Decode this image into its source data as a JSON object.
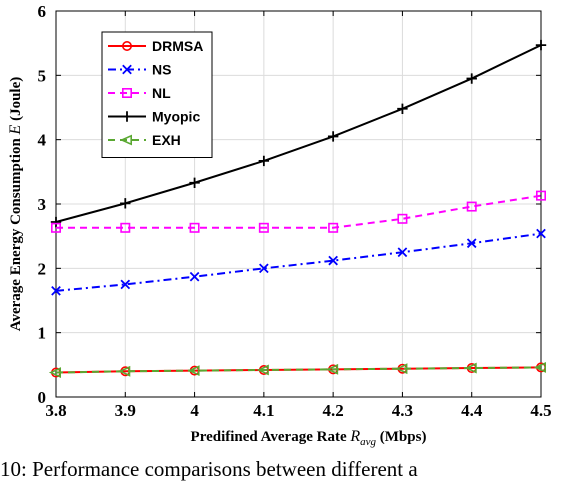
{
  "chart_data": {
    "type": "line",
    "xlabel_main": "Predifined Average Rate ",
    "xlabel_sym": "R",
    "xlabel_sub": "avg",
    "xlabel_unit": " (Mbps)",
    "ylabel_main": "Average Energy Consumption ",
    "ylabel_sym": "E",
    "ylabel_unit": " (Joule)",
    "x": [
      3.8,
      3.9,
      4.0,
      4.1,
      4.2,
      4.3,
      4.4,
      4.5
    ],
    "x_ticks": [
      "3.8",
      "3.9",
      "4",
      "4.1",
      "4.2",
      "4.3",
      "4.4",
      "4.5"
    ],
    "y_ticks": [
      "0",
      "1",
      "2",
      "3",
      "4",
      "5",
      "6"
    ],
    "xlim": [
      3.8,
      4.5
    ],
    "ylim": [
      0,
      6
    ],
    "grid": true,
    "legend_position": "top-left",
    "series": [
      {
        "name": "DRMSA",
        "color": "#ff0000",
        "marker": "circle",
        "dash": "solid",
        "values": [
          0.38,
          0.4,
          0.41,
          0.42,
          0.43,
          0.44,
          0.45,
          0.46
        ]
      },
      {
        "name": "NS",
        "color": "#0000ff",
        "marker": "x",
        "dash": "dashdot",
        "values": [
          1.65,
          1.75,
          1.87,
          2.0,
          2.12,
          2.25,
          2.39,
          2.54
        ]
      },
      {
        "name": "NL",
        "color": "#ff00ff",
        "marker": "square",
        "dash": "dashed",
        "values": [
          2.63,
          2.63,
          2.63,
          2.63,
          2.63,
          2.77,
          2.96,
          3.13
        ]
      },
      {
        "name": "Myopic",
        "color": "#000000",
        "marker": "plus",
        "dash": "solid",
        "values": [
          2.72,
          3.01,
          3.33,
          3.67,
          4.05,
          4.48,
          4.95,
          5.47
        ]
      },
      {
        "name": "EXH",
        "color": "#5aa832",
        "marker": "triangle-left",
        "dash": "dashed",
        "values": [
          0.38,
          0.4,
          0.41,
          0.42,
          0.43,
          0.44,
          0.45,
          0.46
        ]
      }
    ]
  },
  "caption": {
    "text": "10: Performance comparisons between different a"
  }
}
